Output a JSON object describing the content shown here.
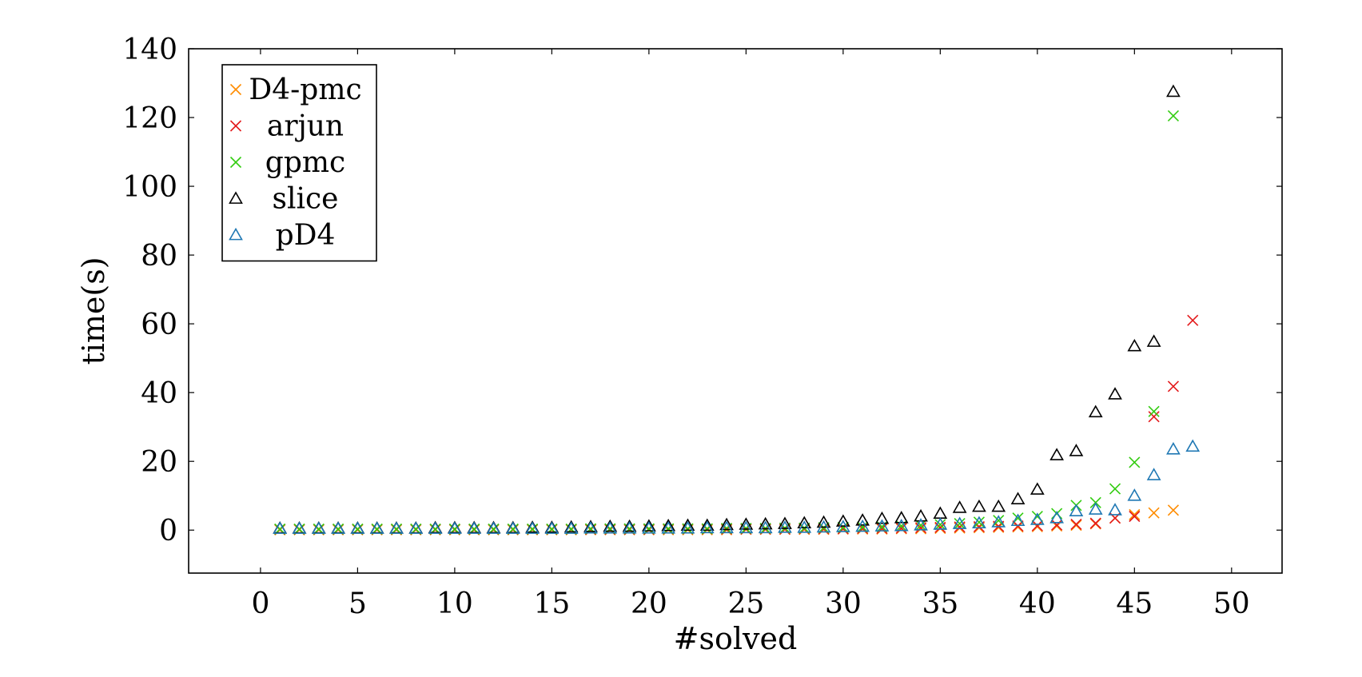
{
  "chart_data": {
    "type": "scatter",
    "title": "",
    "xlabel": "#solved",
    "ylabel": "time(s)",
    "xlim": [
      -3.7,
      52.6
    ],
    "ylim": [
      -12.5,
      140
    ],
    "xticks": [
      0,
      5,
      10,
      15,
      20,
      25,
      30,
      35,
      40,
      45,
      50
    ],
    "yticks": [
      0,
      20,
      40,
      60,
      80,
      100,
      120,
      140
    ],
    "xtick_labels": [
      "0",
      "5",
      "10",
      "15",
      "20",
      "25",
      "30",
      "35",
      "40",
      "45",
      "50"
    ],
    "ytick_labels": [
      "0",
      "20",
      "40",
      "60",
      "80",
      "100",
      "120",
      "140"
    ],
    "grid": false,
    "legend_position": "top-left",
    "series": [
      {
        "name": "D4-pmc",
        "marker": "x",
        "color": "#ff8c00",
        "x": [
          1,
          2,
          3,
          4,
          5,
          6,
          7,
          8,
          9,
          10,
          11,
          12,
          13,
          14,
          15,
          16,
          17,
          18,
          19,
          20,
          21,
          22,
          23,
          24,
          25,
          26,
          27,
          28,
          29,
          30,
          31,
          32,
          33,
          34,
          35,
          36,
          37,
          38,
          39,
          40,
          41,
          42,
          43,
          44,
          45,
          46,
          47
        ],
        "y": [
          0.1,
          0.1,
          0.1,
          0.1,
          0.1,
          0.1,
          0.1,
          0.1,
          0.1,
          0.1,
          0.1,
          0.1,
          0.1,
          0.1,
          0.1,
          0.1,
          0.1,
          0.1,
          0.1,
          0.1,
          0.1,
          0.1,
          0.1,
          0.1,
          0.2,
          0.2,
          0.2,
          0.2,
          0.2,
          0.3,
          0.3,
          0.3,
          0.4,
          0.4,
          0.5,
          0.6,
          0.7,
          0.8,
          0.9,
          1.0,
          1.2,
          1.4,
          1.8,
          3.5,
          4.5,
          5.0,
          5.8
        ]
      },
      {
        "name": "arjun",
        "marker": "x",
        "color": "#e31a1c",
        "x": [
          1,
          2,
          3,
          4,
          5,
          6,
          7,
          8,
          9,
          10,
          11,
          12,
          13,
          14,
          15,
          16,
          17,
          18,
          19,
          20,
          21,
          22,
          23,
          24,
          25,
          26,
          27,
          28,
          29,
          30,
          31,
          32,
          33,
          34,
          35,
          36,
          37,
          38,
          39,
          40,
          41,
          42,
          43,
          44,
          45,
          46,
          47,
          48
        ],
        "y": [
          0.2,
          0.2,
          0.2,
          0.2,
          0.2,
          0.2,
          0.2,
          0.2,
          0.2,
          0.2,
          0.2,
          0.2,
          0.2,
          0.2,
          0.2,
          0.2,
          0.2,
          0.2,
          0.2,
          0.2,
          0.3,
          0.3,
          0.3,
          0.3,
          0.3,
          0.3,
          0.3,
          0.4,
          0.4,
          0.4,
          0.5,
          0.5,
          0.6,
          0.7,
          0.8,
          0.9,
          1.0,
          1.1,
          1.2,
          1.3,
          1.5,
          1.7,
          2.0,
          3.5,
          4.0,
          33.0,
          41.8,
          61.0
        ]
      },
      {
        "name": "gpmc",
        "marker": "x",
        "color": "#33cc11",
        "x": [
          1,
          2,
          3,
          4,
          5,
          6,
          7,
          8,
          9,
          10,
          11,
          12,
          13,
          14,
          15,
          16,
          17,
          18,
          19,
          20,
          21,
          22,
          23,
          24,
          25,
          26,
          27,
          28,
          29,
          30,
          31,
          32,
          33,
          34,
          35,
          36,
          37,
          38,
          39,
          40,
          41,
          42,
          43,
          44,
          45,
          46,
          47
        ],
        "y": [
          0.3,
          0.3,
          0.3,
          0.3,
          0.3,
          0.3,
          0.3,
          0.3,
          0.3,
          0.3,
          0.3,
          0.3,
          0.3,
          0.3,
          0.3,
          0.3,
          0.4,
          0.4,
          0.4,
          0.4,
          0.4,
          0.4,
          0.4,
          0.5,
          0.5,
          0.5,
          0.6,
          0.6,
          0.7,
          0.8,
          0.9,
          1.0,
          1.2,
          1.4,
          1.6,
          1.9,
          2.3,
          2.8,
          3.5,
          4.0,
          4.8,
          7.2,
          8.0,
          12.0,
          19.7,
          34.5,
          120.5
        ]
      },
      {
        "name": "slice",
        "marker": "triangle",
        "color": "#000000",
        "x": [
          1,
          2,
          3,
          4,
          5,
          6,
          7,
          8,
          9,
          10,
          11,
          12,
          13,
          14,
          15,
          16,
          17,
          18,
          19,
          20,
          21,
          22,
          23,
          24,
          25,
          26,
          27,
          28,
          29,
          30,
          31,
          32,
          33,
          34,
          35,
          36,
          37,
          38,
          39,
          40,
          41,
          42,
          43,
          44,
          45,
          46,
          47
        ],
        "y": [
          0.5,
          0.5,
          0.5,
          0.5,
          0.5,
          0.5,
          0.5,
          0.5,
          0.6,
          0.6,
          0.6,
          0.6,
          0.6,
          0.7,
          0.7,
          0.8,
          0.9,
          1.0,
          1.0,
          1.1,
          1.2,
          1.3,
          1.3,
          1.5,
          1.6,
          1.7,
          1.8,
          2.0,
          2.2,
          2.5,
          2.8,
          3.3,
          3.5,
          4.0,
          4.8,
          6.5,
          6.8,
          6.8,
          9.0,
          11.8,
          21.8,
          23.0,
          34.3,
          39.5,
          53.5,
          54.8,
          127.5
        ]
      },
      {
        "name": "pD4",
        "marker": "triangle",
        "color": "#1f78b4",
        "x": [
          1,
          2,
          3,
          4,
          5,
          6,
          7,
          8,
          9,
          10,
          11,
          12,
          13,
          14,
          15,
          16,
          17,
          18,
          19,
          20,
          21,
          22,
          23,
          24,
          25,
          26,
          27,
          28,
          29,
          30,
          31,
          32,
          33,
          34,
          35,
          36,
          37,
          38,
          39,
          40,
          41,
          42,
          43,
          44,
          45,
          46,
          47,
          48
        ],
        "y": [
          0.4,
          0.4,
          0.4,
          0.4,
          0.4,
          0.4,
          0.4,
          0.4,
          0.4,
          0.4,
          0.4,
          0.4,
          0.4,
          0.4,
          0.4,
          0.4,
          0.5,
          0.5,
          0.5,
          0.5,
          0.5,
          0.5,
          0.6,
          0.6,
          0.6,
          0.6,
          0.7,
          0.7,
          0.8,
          0.9,
          1.0,
          1.1,
          1.2,
          1.4,
          1.6,
          1.8,
          2.0,
          2.3,
          2.7,
          3.0,
          3.5,
          5.5,
          6.0,
          5.8,
          10.0,
          16.0,
          23.5,
          24.3
        ]
      }
    ]
  }
}
